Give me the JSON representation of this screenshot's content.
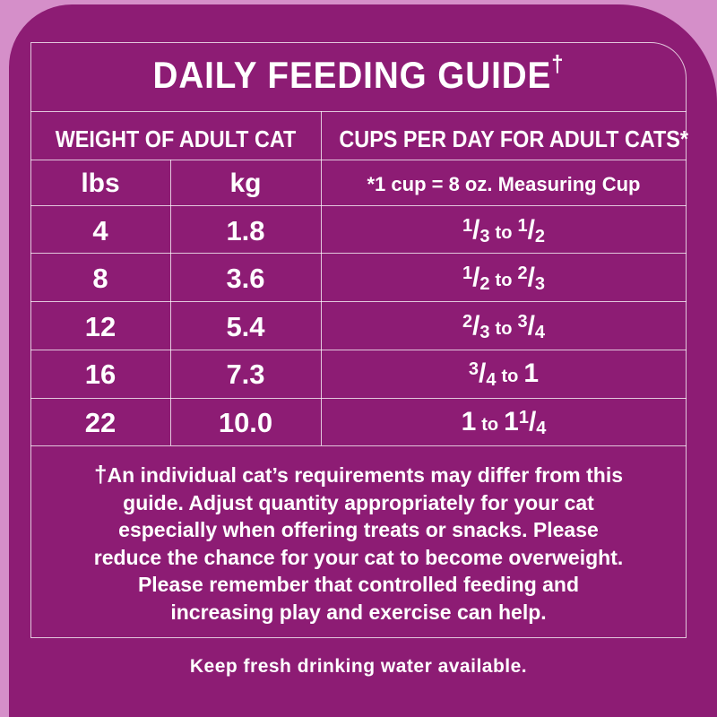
{
  "title": "DAILY FEEDING GUIDE",
  "title_mark": "†",
  "headers": {
    "weight": "WEIGHT OF ADULT CAT",
    "cups": "CUPS PER DAY FOR ADULT CATS*"
  },
  "subheaders": {
    "lbs": "lbs",
    "kg": "kg",
    "cup_note": "*1 cup = 8 oz. Measuring Cup"
  },
  "rows": [
    {
      "lbs": "4",
      "kg": "1.8",
      "a_num": "1",
      "a_den": "3",
      "to": "to",
      "b_whole": "",
      "b_num": "1",
      "b_den": "2"
    },
    {
      "lbs": "8",
      "kg": "3.6",
      "a_num": "1",
      "a_den": "2",
      "to": "to",
      "b_whole": "",
      "b_num": "2",
      "b_den": "3"
    },
    {
      "lbs": "12",
      "kg": "5.4",
      "a_num": "2",
      "a_den": "3",
      "to": "to",
      "b_whole": "",
      "b_num": "3",
      "b_den": "4"
    },
    {
      "lbs": "16",
      "kg": "7.3",
      "a_num": "3",
      "a_den": "4",
      "to": "to",
      "b_whole": "1",
      "b_num": "",
      "b_den": ""
    },
    {
      "lbs": "22",
      "kg": "10.0",
      "a_whole": "1",
      "to": "to",
      "b_whole": "1",
      "b_num": "1",
      "b_den": "4"
    }
  ],
  "footnote": {
    "mark": "†",
    "text": "An individual cat’s requirements may differ from this guide. Adjust quantity appropriately for your cat especially when offering treats or snacks. Please reduce the chance for your cat to become overweight.",
    "text2": "Please remember that controlled feeding and increasing play and exercise can help."
  },
  "bottom_note": "Keep fresh drinking water available.",
  "colors": {
    "background_outer": "#d58fc9",
    "panel": "#8d1c74",
    "text": "#ffffff"
  }
}
